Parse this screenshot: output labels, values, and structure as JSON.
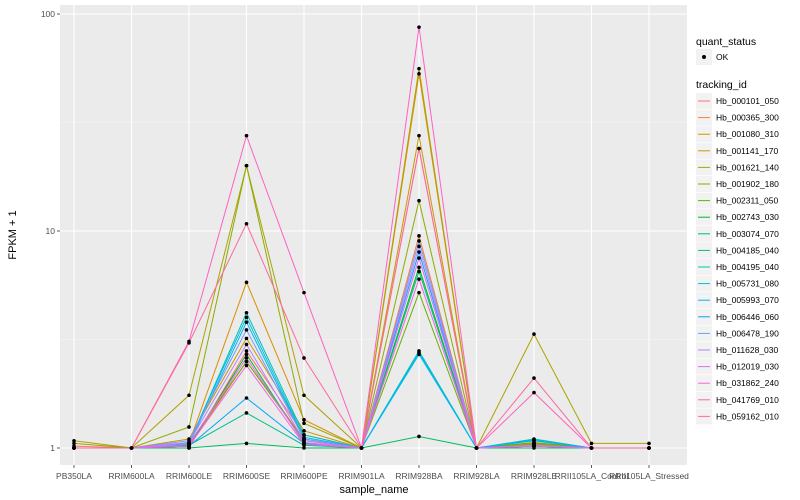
{
  "chart_data": {
    "type": "line",
    "xlabel": "sample_name",
    "ylabel": "FPKM + 1",
    "y_scale": "log10",
    "ylim": [
      1,
      100
    ],
    "y_ticks": [
      {
        "value": 1,
        "label": "1"
      },
      {
        "value": 10,
        "label": "10"
      },
      {
        "value": 100,
        "label": "100"
      }
    ],
    "categories": [
      "PB350LA",
      "RRIM600LA",
      "RRIM600LE",
      "RRIM600SE",
      "RRIM600PE",
      "RRIM901LA",
      "RRIM928BA",
      "RRIM928LA",
      "RRIM928LE",
      "RRII105LA_Control",
      "RRII105LA_Stressed"
    ],
    "grid": true,
    "background": "#ebebeb",
    "legend_position": "right",
    "point_legend": {
      "title": "quant_status",
      "entries": [
        "OK"
      ]
    },
    "color_legend_title": "tracking_id",
    "series": [
      {
        "name": "Hb_000101_050",
        "color": "#F8766D",
        "values": [
          1.02,
          1.0,
          1.0,
          2.8,
          1.15,
          1.0,
          24.0,
          1.0,
          1.08,
          1.0,
          1.0
        ]
      },
      {
        "name": "Hb_000365_300",
        "color": "#EC8239",
        "values": [
          1.0,
          1.0,
          1.02,
          2.5,
          1.1,
          1.0,
          9.5,
          1.0,
          1.05,
          1.0,
          1.0
        ]
      },
      {
        "name": "Hb_001080_310",
        "color": "#DB8E00",
        "values": [
          1.0,
          1.0,
          1.05,
          5.8,
          1.35,
          1.0,
          53.0,
          1.0,
          1.05,
          1.0,
          1.0
        ]
      },
      {
        "name": "Hb_001141_170",
        "color": "#C79800",
        "values": [
          1.0,
          1.0,
          1.1,
          3.2,
          1.2,
          1.0,
          27.5,
          1.0,
          1.04,
          1.0,
          1.0
        ]
      },
      {
        "name": "Hb_001621_140",
        "color": "#AEA200",
        "values": [
          1.08,
          1.0,
          1.75,
          20.0,
          1.75,
          1.0,
          56.0,
          1.0,
          3.35,
          1.05,
          1.05
        ]
      },
      {
        "name": "Hb_001902_180",
        "color": "#8FAA00",
        "values": [
          1.05,
          1.0,
          1.25,
          20.0,
          1.3,
          1.0,
          13.8,
          1.0,
          1.04,
          1.0,
          1.0
        ]
      },
      {
        "name": "Hb_002311_050",
        "color": "#64B200",
        "values": [
          1.0,
          1.0,
          1.05,
          2.5,
          1.08,
          1.0,
          5.2,
          1.0,
          1.06,
          1.0,
          1.0
        ]
      },
      {
        "name": "Hb_002743_030",
        "color": "#00B81B",
        "values": [
          1.0,
          1.0,
          1.02,
          2.7,
          1.05,
          1.0,
          6.8,
          1.0,
          1.03,
          1.0,
          1.0
        ]
      },
      {
        "name": "Hb_003074_070",
        "color": "#00BD5C",
        "values": [
          1.0,
          1.0,
          1.0,
          1.05,
          1.0,
          1.0,
          1.13,
          1.0,
          1.0,
          1.0,
          1.0
        ]
      },
      {
        "name": "Hb_004185_040",
        "color": "#00C08E",
        "values": [
          1.0,
          1.0,
          1.03,
          1.45,
          1.03,
          1.0,
          6.5,
          1.0,
          1.02,
          1.0,
          1.0
        ]
      },
      {
        "name": "Hb_004195_040",
        "color": "#00C1B7",
        "values": [
          1.0,
          1.0,
          1.05,
          4.2,
          1.15,
          1.0,
          2.8,
          1.0,
          1.1,
          1.0,
          1.0
        ]
      },
      {
        "name": "Hb_005731_080",
        "color": "#00BDDC",
        "values": [
          1.0,
          1.0,
          1.06,
          4.0,
          1.12,
          1.0,
          2.75,
          1.0,
          1.09,
          1.0,
          1.0
        ]
      },
      {
        "name": "Hb_005993_070",
        "color": "#00B5F9",
        "values": [
          1.0,
          1.0,
          1.04,
          3.8,
          1.1,
          1.0,
          2.7,
          1.0,
          1.08,
          1.0,
          1.0
        ]
      },
      {
        "name": "Hb_006446_060",
        "color": "#00A5FF",
        "values": [
          1.0,
          1.0,
          1.02,
          1.7,
          1.05,
          1.0,
          8.0,
          1.0,
          1.02,
          1.0,
          1.0
        ]
      },
      {
        "name": "Hb_006478_190",
        "color": "#7997FF",
        "values": [
          1.0,
          1.0,
          1.08,
          3.5,
          1.1,
          1.0,
          9.0,
          1.0,
          1.03,
          1.0,
          1.0
        ]
      },
      {
        "name": "Hb_011628_030",
        "color": "#B983FF",
        "values": [
          1.0,
          1.0,
          1.06,
          3.0,
          1.08,
          1.0,
          8.5,
          1.0,
          1.03,
          1.0,
          1.0
        ]
      },
      {
        "name": "Hb_012019_030",
        "color": "#E06CF6",
        "values": [
          1.0,
          1.0,
          1.04,
          2.6,
          1.06,
          1.0,
          7.5,
          1.0,
          1.02,
          1.0,
          1.0
        ]
      },
      {
        "name": "Hb_031862_240",
        "color": "#F763E0",
        "values": [
          1.0,
          1.0,
          1.02,
          2.4,
          1.04,
          1.0,
          6.0,
          1.0,
          1.02,
          1.0,
          1.0
        ]
      },
      {
        "name": "Hb_041769_010",
        "color": "#FF61C3",
        "values": [
          1.0,
          1.0,
          3.1,
          27.5,
          5.2,
          1.0,
          87.0,
          1.0,
          1.8,
          1.0,
          1.0
        ]
      },
      {
        "name": "Hb_059162_010",
        "color": "#FF699C",
        "values": [
          1.0,
          1.0,
          3.05,
          10.8,
          2.6,
          1.0,
          24.0,
          1.0,
          2.1,
          1.0,
          1.0
        ]
      }
    ]
  }
}
